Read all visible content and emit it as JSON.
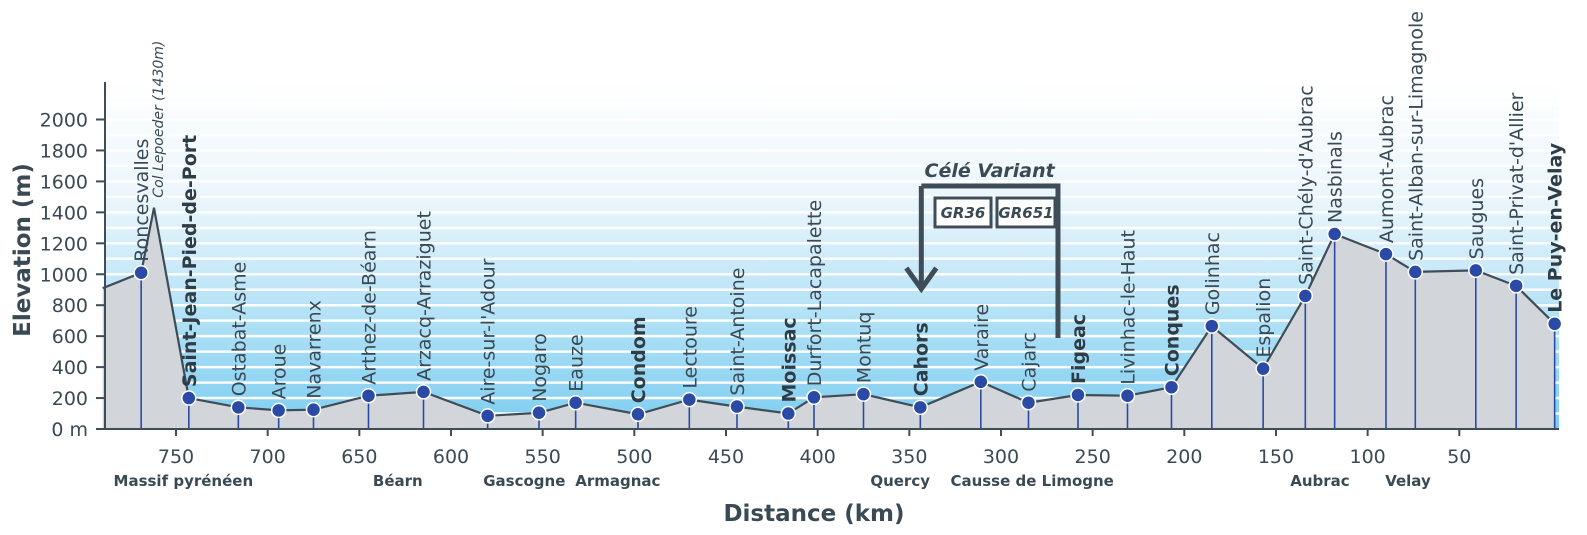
{
  "chart_data": {
    "type": "area",
    "xlabel": "Distance (km)",
    "ylabel": "Elevation (m)",
    "xlim": [
      790,
      -2
    ],
    "ylim": [
      0,
      2000
    ],
    "x_ticks": [
      750,
      700,
      650,
      600,
      550,
      500,
      450,
      400,
      350,
      300,
      250,
      200,
      150,
      100,
      50
    ],
    "y_ticks": [
      {
        "value": 0,
        "label": "0 m"
      },
      {
        "value": 200,
        "label": "200"
      },
      {
        "value": 400,
        "label": "400"
      },
      {
        "value": 600,
        "label": "600"
      },
      {
        "value": 800,
        "label": "800"
      },
      {
        "value": 1000,
        "label": "1000"
      },
      {
        "value": 1200,
        "label": "1200"
      },
      {
        "value": 1400,
        "label": "1400"
      },
      {
        "value": 1600,
        "label": "1600"
      },
      {
        "value": 1800,
        "label": "1800"
      },
      {
        "value": 2000,
        "label": "2000"
      }
    ],
    "profile": [
      {
        "x": 790,
        "y": 910
      },
      {
        "x": 769,
        "y": 1010
      },
      {
        "x": 762,
        "y": 1430
      },
      {
        "x": 743,
        "y": 200
      },
      {
        "x": 716,
        "y": 140
      },
      {
        "x": 694,
        "y": 120
      },
      {
        "x": 675,
        "y": 125
      },
      {
        "x": 645,
        "y": 215
      },
      {
        "x": 615,
        "y": 240
      },
      {
        "x": 580,
        "y": 85
      },
      {
        "x": 552,
        "y": 105
      },
      {
        "x": 532,
        "y": 170
      },
      {
        "x": 498,
        "y": 95
      },
      {
        "x": 470,
        "y": 190
      },
      {
        "x": 444,
        "y": 145
      },
      {
        "x": 416,
        "y": 100
      },
      {
        "x": 402,
        "y": 205
      },
      {
        "x": 375,
        "y": 225
      },
      {
        "x": 344,
        "y": 140
      },
      {
        "x": 311,
        "y": 305
      },
      {
        "x": 285,
        "y": 170
      },
      {
        "x": 258,
        "y": 220
      },
      {
        "x": 231,
        "y": 215
      },
      {
        "x": 207,
        "y": 270
      },
      {
        "x": 185,
        "y": 665
      },
      {
        "x": 157,
        "y": 390
      },
      {
        "x": 134,
        "y": 860
      },
      {
        "x": 118,
        "y": 1260
      },
      {
        "x": 90,
        "y": 1130
      },
      {
        "x": 74,
        "y": 1015
      },
      {
        "x": 41,
        "y": 1025
      },
      {
        "x": 19,
        "y": 925
      },
      {
        "x": -2,
        "y": 680
      }
    ],
    "towns": [
      {
        "name": "Roncesvalles",
        "km": 769,
        "elev": 1010,
        "bold": false
      },
      {
        "name": "Saint-Jean-Pied-de-Port",
        "km": 743,
        "elev": 200,
        "bold": true
      },
      {
        "name": "Ostabat-Asme",
        "km": 716,
        "elev": 140,
        "bold": false
      },
      {
        "name": "Aroue",
        "km": 694,
        "elev": 120,
        "bold": false
      },
      {
        "name": "Navarrenx",
        "km": 675,
        "elev": 125,
        "bold": false
      },
      {
        "name": "Arthez-de-Béarn",
        "km": 645,
        "elev": 215,
        "bold": false
      },
      {
        "name": "Arzacq-Arraziguet",
        "km": 615,
        "elev": 240,
        "bold": false
      },
      {
        "name": "Aire-sur-l'Adour",
        "km": 580,
        "elev": 85,
        "bold": false
      },
      {
        "name": "Nogaro",
        "km": 552,
        "elev": 105,
        "bold": false
      },
      {
        "name": "Eauze",
        "km": 532,
        "elev": 170,
        "bold": false
      },
      {
        "name": "Condom",
        "km": 498,
        "elev": 95,
        "bold": true
      },
      {
        "name": "Lectoure",
        "km": 470,
        "elev": 190,
        "bold": false
      },
      {
        "name": "Saint-Antoine",
        "km": 444,
        "elev": 145,
        "bold": false
      },
      {
        "name": "Moissac",
        "km": 416,
        "elev": 100,
        "bold": true
      },
      {
        "name": "Durfort-Lacapalette",
        "km": 402,
        "elev": 205,
        "bold": false
      },
      {
        "name": "Montuq",
        "km": 375,
        "elev": 225,
        "bold": false
      },
      {
        "name": "Cahors",
        "km": 344,
        "elev": 140,
        "bold": true
      },
      {
        "name": "Varaire",
        "km": 311,
        "elev": 305,
        "bold": false
      },
      {
        "name": "Cajarc",
        "km": 285,
        "elev": 170,
        "bold": false
      },
      {
        "name": "Figeac",
        "km": 258,
        "elev": 220,
        "bold": true
      },
      {
        "name": "Livinhac-le-Haut",
        "km": 231,
        "elev": 215,
        "bold": false
      },
      {
        "name": "Conques",
        "km": 207,
        "elev": 270,
        "bold": true
      },
      {
        "name": "Golinhac",
        "km": 185,
        "elev": 665,
        "bold": false
      },
      {
        "name": "Espalion",
        "km": 157,
        "elev": 390,
        "bold": false
      },
      {
        "name": "Saint-Chély-d'Aubrac",
        "km": 134,
        "elev": 860,
        "bold": false
      },
      {
        "name": "Nasbinals",
        "km": 118,
        "elev": 1260,
        "bold": false
      },
      {
        "name": "Aumont-Aubrac",
        "km": 90,
        "elev": 1130,
        "bold": false
      },
      {
        "name": "Saint-Alban-sur-Limagnole",
        "km": 74,
        "elev": 1015,
        "bold": false
      },
      {
        "name": "Saugues",
        "km": 41,
        "elev": 1025,
        "bold": false
      },
      {
        "name": "Saint-Privat-d'Allier",
        "km": 19,
        "elev": 925,
        "bold": false
      },
      {
        "name": "Le Puy-en-Velay",
        "km": -2,
        "elev": 680,
        "bold": true
      }
    ],
    "pass": {
      "label": "Col Lepoeder (1430m)",
      "km": 762,
      "elev": 1430
    },
    "regions": [
      {
        "name": "Massif pyrénéen",
        "km": 746
      },
      {
        "name": "Béarn",
        "km": 629
      },
      {
        "name": "Gascogne",
        "km": 560
      },
      {
        "name": "Armagnac",
        "km": 509
      },
      {
        "name": "Quercy",
        "km": 355
      },
      {
        "name": "Causse de Limogne",
        "km": 283
      },
      {
        "name": "Aubrac",
        "km": 126
      },
      {
        "name": "Velay",
        "km": 78
      }
    ],
    "variant": {
      "title": "Célé Variant",
      "badges": [
        "GR36",
        "GR651"
      ],
      "from_km": 344,
      "to_km": 258
    },
    "colors": {
      "profile_fill": "#d2d5d9",
      "profile_line": "#3e4d58",
      "town_marker": "#2a4aa5",
      "grid": "#ffffff",
      "band_top": "#e9f5fc",
      "band_bottom": "#7ccdf0",
      "axis_text": "#3a4a55"
    }
  }
}
